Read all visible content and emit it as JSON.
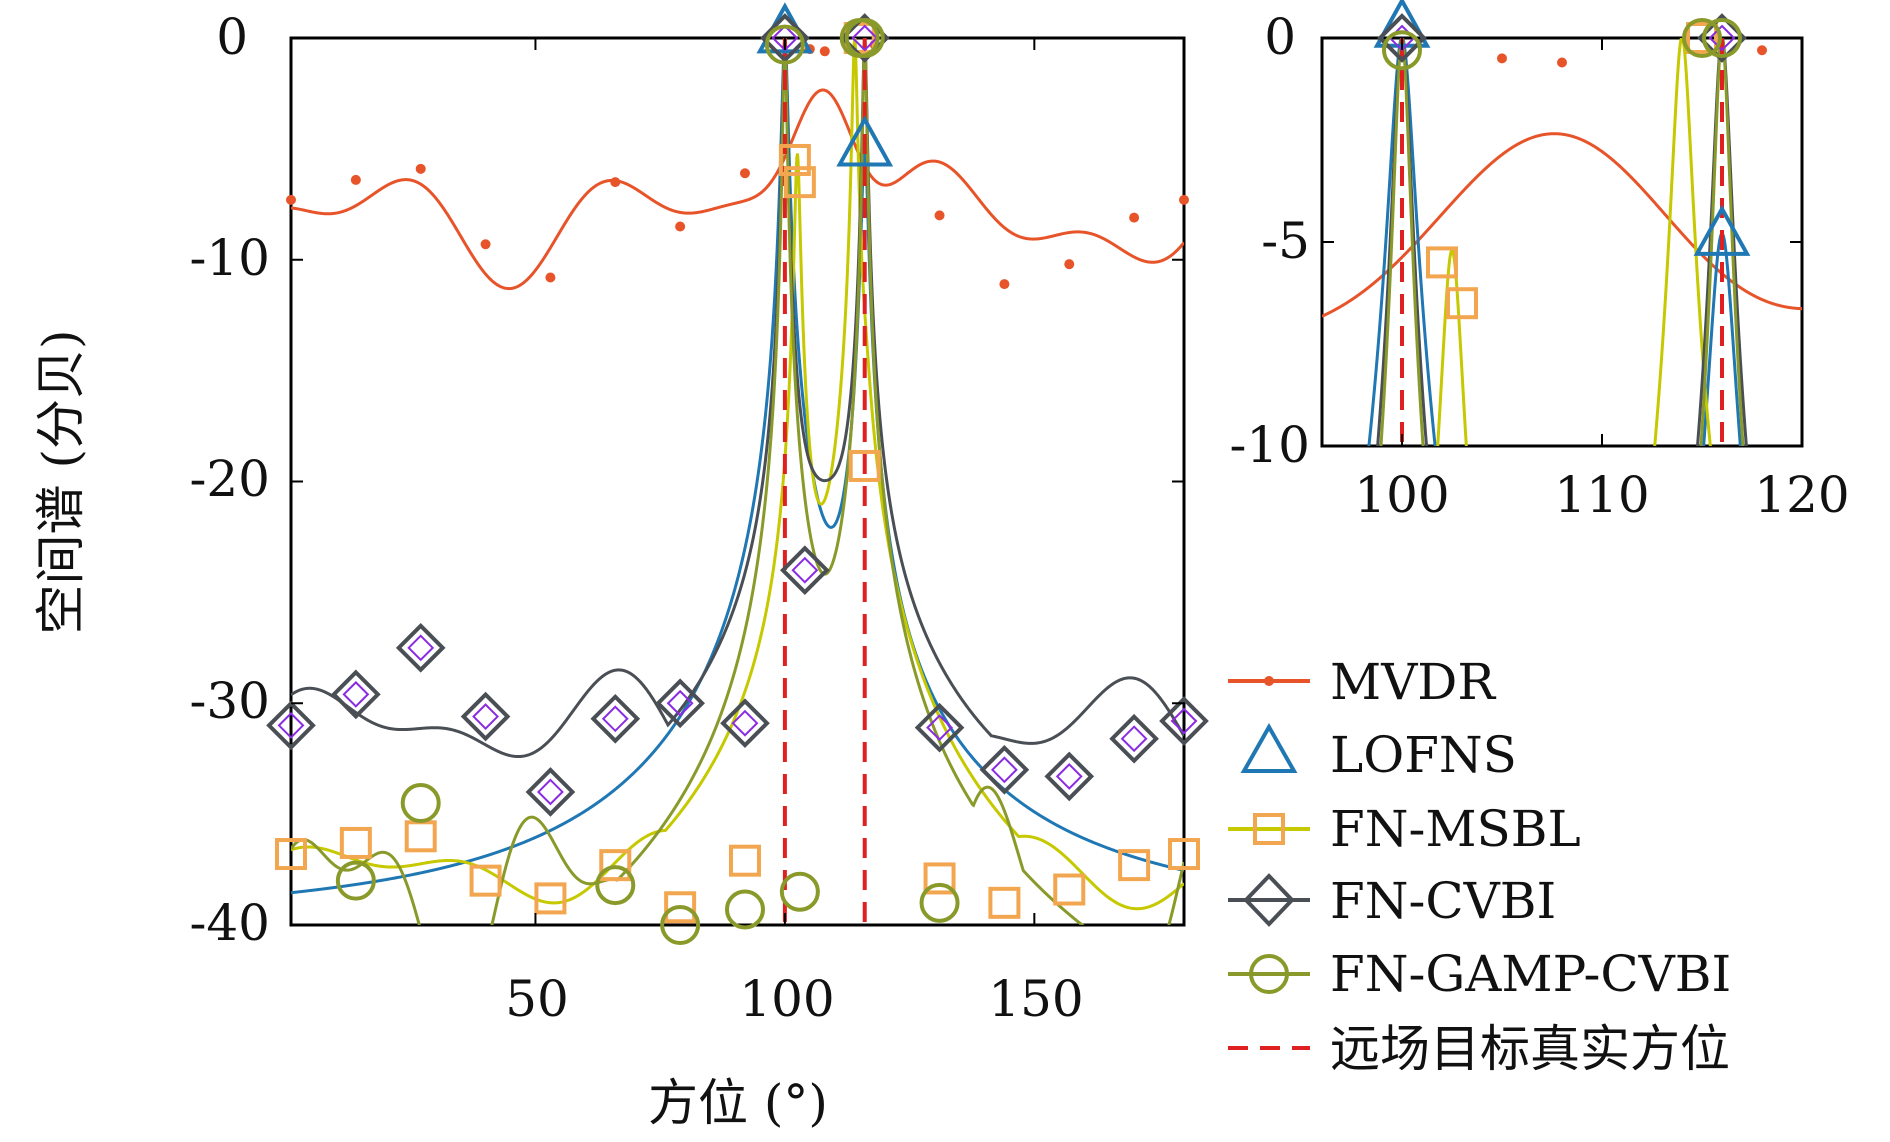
{
  "chart_data": [
    {
      "type": "line",
      "title": "",
      "xlabel": "方位 (°)",
      "ylabel": "空间谱 (分贝)",
      "xlim": [
        1,
        180
      ],
      "ylim": [
        -40,
        0
      ],
      "xticks": [
        50,
        100,
        150
      ],
      "yticks": [
        0,
        -10,
        -20,
        -30,
        -40
      ],
      "grid": false,
      "legend_position": "right",
      "series": [
        {
          "name": "MVDR",
          "color": "#e8542a",
          "marker": "dot",
          "x": [
            1,
            14,
            27,
            40,
            53,
            66,
            79,
            92,
            105,
            108,
            118,
            131,
            144,
            157,
            170,
            180
          ],
          "y": [
            -7.3,
            -6.4,
            -5.9,
            -9.3,
            -10.8,
            -6.5,
            -8.5,
            -6.1,
            -0.5,
            -0.6,
            -0.3,
            -8.0,
            -11.1,
            -10.2,
            -8.1,
            -7.3
          ]
        },
        {
          "name": "LOFNS",
          "color": "#1f77b4",
          "marker": "triangle",
          "x": [
            100,
            116
          ],
          "y": [
            0.3,
            -4.8
          ]
        },
        {
          "name": "FN-MSBL",
          "color": "#c6c800",
          "marker": "square",
          "marker_color": "#f2a650",
          "x": [
            1,
            14,
            27,
            40,
            53,
            66,
            79,
            92,
            102,
            103,
            115,
            116,
            131,
            144,
            157,
            170,
            180
          ],
          "y": [
            -36.8,
            -36.3,
            -36.0,
            -38.0,
            -38.8,
            -37.3,
            -39.2,
            -37.1,
            -5.5,
            -6.5,
            0.0,
            -19.3,
            -37.9,
            -39.0,
            -38.4,
            -37.3,
            -36.8
          ]
        },
        {
          "name": "FN-CVBI",
          "color": "#4a4f55",
          "marker": "diamond",
          "marker_color": "#8a2be2",
          "x": [
            1,
            14,
            27,
            40,
            53,
            66,
            79,
            92,
            100,
            104,
            116,
            131,
            144,
            157,
            170,
            180
          ],
          "y": [
            -31.0,
            -29.6,
            -27.5,
            -30.6,
            -34.0,
            -30.7,
            -30.0,
            -30.9,
            0.0,
            -24.0,
            0.0,
            -31.1,
            -33.0,
            -33.3,
            -31.6,
            -30.8
          ]
        },
        {
          "name": "FN-GAMP-CVBI",
          "color": "#8a9a2a",
          "marker": "circle",
          "x": [
            14,
            27,
            66,
            79,
            92,
            100,
            103,
            115,
            116,
            131
          ],
          "y": [
            -38.0,
            -34.5,
            -38.2,
            -40.0,
            -39.3,
            -0.3,
            -38.5,
            0.0,
            0.0,
            -39.0
          ]
        },
        {
          "name": "远场目标真实方位",
          "color": "#e02020",
          "marker": "dashed",
          "x": [
            100,
            116
          ],
          "y": [
            0,
            0
          ]
        }
      ]
    },
    {
      "type": "line",
      "title": "",
      "xlim": [
        96,
        120
      ],
      "ylim": [
        -10,
        0
      ],
      "xticks": [
        100,
        110,
        120
      ],
      "yticks": [
        0,
        -5,
        -10
      ],
      "grid": false,
      "note_series": "zoomed inset of the same series"
    }
  ],
  "tick_labels": {
    "main_x": [
      "50",
      "100",
      "150"
    ],
    "main_y": [
      "0",
      "-10",
      "-20",
      "-30",
      "-40"
    ],
    "inset_x": [
      "100",
      "110",
      "120"
    ],
    "inset_y": [
      "0",
      "-5",
      "-10"
    ]
  },
  "legend": [
    "MVDR",
    "LOFNS",
    "FN-MSBL",
    "FN-CVBI",
    "FN-GAMP-CVBI",
    "远场目标真实方位"
  ]
}
